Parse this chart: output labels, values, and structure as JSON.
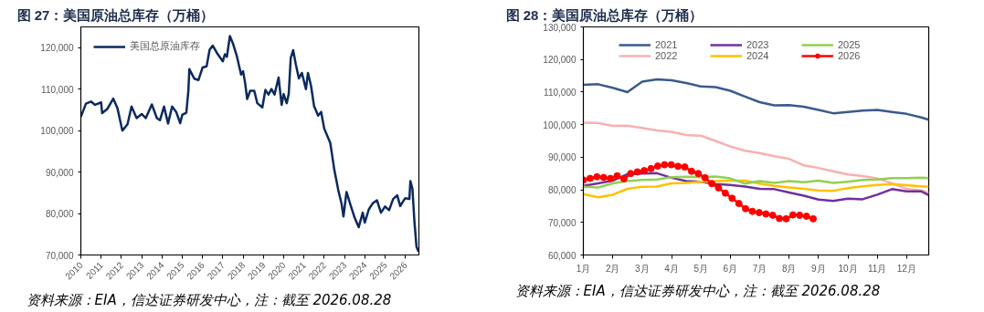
{
  "chart_data": [
    {
      "type": "line",
      "title": "图 27：美国原油总库存（万桶）",
      "annotations": [
        "资料来源：EIA，信达证券研发中心，注：截至 2026.08.28"
      ],
      "x": [
        2010.0,
        2010.25,
        2010.5,
        2010.7,
        2011.0,
        2011.05,
        2011.3,
        2011.6,
        2011.8,
        2012.0,
        2012.05,
        2012.3,
        2012.5,
        2012.75,
        2013.0,
        2013.2,
        2013.5,
        2013.75,
        2013.9,
        2014.1,
        2014.3,
        2014.5,
        2014.7,
        2014.9,
        2015.0,
        2015.2,
        2015.3,
        2015.35,
        2015.6,
        2015.8,
        2016.0,
        2016.2,
        2016.35,
        2016.5,
        2016.7,
        2017.0,
        2017.1,
        2017.2,
        2017.35,
        2017.5,
        2017.7,
        2017.9,
        2018.0,
        2018.1,
        2018.2,
        2018.35,
        2018.55,
        2018.7,
        2018.95,
        2019.1,
        2019.25,
        2019.4,
        2019.55,
        2019.75,
        2019.9,
        2020.0,
        2020.15,
        2020.25,
        2020.35,
        2020.47,
        2020.6,
        2020.75,
        2020.9,
        2021.1,
        2021.2,
        2021.35,
        2021.5,
        2021.7,
        2021.85,
        2022.0,
        2022.3,
        2022.5,
        2022.7,
        2022.85,
        2022.95,
        2023.1,
        2023.3,
        2023.5,
        2023.7,
        2023.9,
        2024.0,
        2024.2,
        2024.4,
        2024.6,
        2024.8,
        2025.0,
        2025.2,
        2025.4,
        2025.6,
        2025.75,
        2025.9,
        2026.0,
        2026.2,
        2026.25,
        2026.35,
        2026.45,
        2026.55,
        2026.65
      ],
      "series": [
        {
          "name": "美国总原油库存",
          "color": "#0b2a5e",
          "values": [
            103300,
            106500,
            107000,
            106200,
            106800,
            104200,
            105200,
            107700,
            105500,
            101000,
            100000,
            101500,
            105800,
            103000,
            104000,
            103000,
            106300,
            103000,
            102500,
            105800,
            101700,
            105800,
            104500,
            101800,
            103800,
            104300,
            109500,
            114800,
            112500,
            112200,
            115200,
            115500,
            119500,
            120500,
            118800,
            116700,
            118400,
            117800,
            122800,
            121000,
            117800,
            113500,
            114300,
            111500,
            107600,
            109600,
            109600,
            106600,
            105600,
            109800,
            108700,
            110000,
            108700,
            112800,
            106200,
            108800,
            106600,
            108800,
            117500,
            119400,
            116000,
            112600,
            113900,
            110000,
            113900,
            110800,
            105900,
            103600,
            104500,
            100500,
            97000,
            90500,
            85500,
            82500,
            79300,
            85200,
            82000,
            79000,
            76700,
            80200,
            77800,
            81000,
            82500,
            83200,
            80200,
            81700,
            80800,
            83500,
            84400,
            81800,
            83000,
            83700,
            83500,
            87800,
            86000,
            78000,
            72000,
            70800
          ]
        }
      ],
      "xlim": [
        2010,
        2026.67
      ],
      "xticks": [
        2010,
        2011,
        2012,
        2013,
        2014,
        2015,
        2016,
        2017,
        2018,
        2019,
        2020,
        2021,
        2022,
        2023,
        2024,
        2025,
        2026
      ],
      "ylim": [
        70000,
        125000
      ],
      "yticks": [
        {
          "value": 70000,
          "label": "70,000"
        },
        {
          "value": 80000,
          "label": "80,000"
        },
        {
          "value": 90000,
          "label": "90,000"
        },
        {
          "value": 100000,
          "label": "100,000"
        },
        {
          "value": 110000,
          "label": "110,000"
        },
        {
          "value": 120000,
          "label": "120,000"
        }
      ],
      "grid": false,
      "legend": "top left"
    },
    {
      "type": "line",
      "title": "图 28：美国原油总库存（万桶）",
      "annotations": [
        "资料来源：EIA，信达证券研发中心，注：截至 2026.08.28"
      ],
      "x": [
        1,
        1.5,
        2,
        2.5,
        3,
        3.5,
        4,
        4.5,
        5,
        5.5,
        6,
        6.5,
        7,
        7.5,
        8,
        8.5,
        9,
        9.5,
        10,
        10.5,
        11,
        11.5,
        12,
        12.5,
        12.75
      ],
      "series": [
        {
          "name": "2021",
          "color": "#3a5a8c",
          "values": [
            112200,
            112400,
            111300,
            110000,
            113200,
            113900,
            113600,
            112800,
            111700,
            111500,
            110400,
            108600,
            106900,
            105900,
            106000,
            105500,
            104500,
            103500,
            103900,
            104300,
            104500,
            103900,
            103300,
            102200,
            101500
          ]
        },
        {
          "name": "2022",
          "color": "#f8b0b0",
          "values": [
            100600,
            100500,
            99600,
            99700,
            99000,
            98200,
            97800,
            96800,
            96600,
            95000,
            93300,
            92000,
            91300,
            90300,
            89500,
            87500,
            86700,
            85700,
            84700,
            84200,
            83500,
            82000,
            80300,
            79800,
            79000
          ]
        },
        {
          "name": "2023",
          "color": "#7030a0",
          "values": [
            81200,
            82000,
            82800,
            84800,
            85000,
            85100,
            83700,
            82700,
            82500,
            81800,
            81500,
            81000,
            80300,
            80200,
            79200,
            78200,
            77000,
            76600,
            77300,
            77100,
            78500,
            80200,
            79500,
            79500,
            78400
          ]
        },
        {
          "name": "2024",
          "color": "#ffc000",
          "values": [
            78700,
            77700,
            78500,
            80300,
            80900,
            81000,
            82000,
            82100,
            82500,
            82700,
            82800,
            82800,
            81900,
            81200,
            80700,
            80300,
            79800,
            79700,
            80500,
            81100,
            81500,
            81800,
            81400,
            81100,
            80900
          ]
        },
        {
          "name": "2025",
          "color": "#92d050",
          "values": [
            80900,
            80700,
            82000,
            82700,
            83000,
            83200,
            83900,
            84000,
            83900,
            84100,
            83500,
            81900,
            82700,
            82100,
            82700,
            82300,
            82800,
            82100,
            82500,
            83000,
            83200,
            83600,
            83600,
            83700,
            83600
          ]
        },
        {
          "name": "2026",
          "color": "#ff0000",
          "marker": "circle",
          "x": [
            1,
            1.23,
            1.46,
            1.69,
            1.92,
            2.15,
            2.38,
            2.61,
            2.84,
            3.07,
            3.3,
            3.53,
            3.76,
            3.99,
            4.22,
            4.45,
            4.68,
            4.91,
            5.14,
            5.37,
            5.6,
            5.83,
            6.06,
            6.29,
            6.52,
            6.75,
            6.98,
            7.21,
            7.44,
            7.67,
            7.9,
            8.13,
            8.36,
            8.59,
            8.82
          ],
          "values": [
            83000,
            83500,
            84000,
            83800,
            83500,
            84300,
            83400,
            85000,
            85500,
            85900,
            86500,
            87300,
            87700,
            87700,
            87200,
            87000,
            85700,
            85000,
            83700,
            81900,
            80600,
            79000,
            77400,
            75800,
            74200,
            73400,
            73000,
            72600,
            72200,
            71200,
            71100,
            72300,
            72200,
            71900,
            71100
          ]
        }
      ],
      "xlim": [
        1,
        12.75
      ],
      "xticks": [
        {
          "value": 1,
          "label": "1月"
        },
        {
          "value": 2,
          "label": "2月"
        },
        {
          "value": 3,
          "label": "3月"
        },
        {
          "value": 4,
          "label": "4月"
        },
        {
          "value": 5,
          "label": "5月"
        },
        {
          "value": 6,
          "label": "6月"
        },
        {
          "value": 7,
          "label": "7月"
        },
        {
          "value": 8,
          "label": "8月"
        },
        {
          "value": 9,
          "label": "9月"
        },
        {
          "value": 10,
          "label": "10月"
        },
        {
          "value": 11,
          "label": "11月"
        },
        {
          "value": 12,
          "label": "12月"
        }
      ],
      "ylim": [
        60000,
        130000
      ],
      "yticks": [
        {
          "value": 60000,
          "label": "60,000"
        },
        {
          "value": 70000,
          "label": "70,000"
        },
        {
          "value": 80000,
          "label": "80,000"
        },
        {
          "value": 90000,
          "label": "90,000"
        },
        {
          "value": 100000,
          "label": "100,000"
        },
        {
          "value": 110000,
          "label": "110,000"
        },
        {
          "value": 120000,
          "label": "120,000"
        },
        {
          "value": 130000,
          "label": "130,000"
        }
      ],
      "grid": false,
      "legend": "top"
    }
  ]
}
